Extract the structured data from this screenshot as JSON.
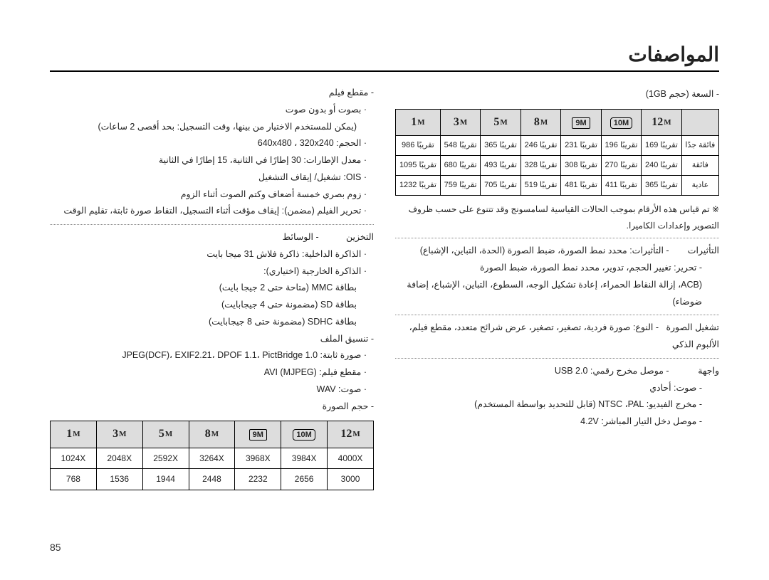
{
  "page": {
    "title": "المواصفات",
    "number": "85"
  },
  "right_col": {
    "video_clip_label": "- مقطع فيلم",
    "video_clip_sub": "· بصوت أو بدون صوت",
    "video_clip_note": "(يمكن للمستخدم الاختيار من بينها، وقت التسجيل: بحد أقصى 2 ساعات)",
    "size_line": "· الحجم: 640x480 ، 320x240",
    "fps_line": "· معدل الإطارات: 30 إطارًا في الثانية، 15 إطارًا في الثانية",
    "ois_line": "· OIS: تشغيل/ إيقاف التشغيل",
    "zoom_line": "· زوم بصري خمسة أضعاف وكتم الصوت أثناء الزوم",
    "edit_line": "· تحرير الفيلم (مضمن): إيقاف مؤقت أثناء التسجيل، التقاط صورة ثابتة، تقليم الوقت",
    "storage_label": "التخزين",
    "media_label": "- الوسائط",
    "internal_mem": "· الذاكرة الداخلية: ذاكرة فلاش 31 ميجا بايت",
    "external_mem": "· الذاكرة الخارجية (اختياري):",
    "mmc": "بطاقة MMC (متاحة حتى 2 جيجا بايت)",
    "sd": "بطاقة SD (مضمونة حتى 4 جيجابايت)",
    "sdhc": "بطاقة SDHC (مضمونة حتى 8 جيجابايت)",
    "file_format_label": "- تنسيق الملف",
    "still_format": "· صورة ثابتة: JPEG(DCF)، EXIF2.21، DPOF 1.1، PictBridge 1.0",
    "movie_format": "· مقطع فيلم: AVI (MJPEG)",
    "sound_format": "· صوت: WAV",
    "image_size_label": "- حجم الصورة"
  },
  "size_table": {
    "headers": [
      "12",
      "10",
      "9",
      "8",
      "5",
      "3",
      "1"
    ],
    "header_styles": [
      "plain",
      "wide",
      "frame",
      "plain",
      "plain",
      "plain",
      "plain"
    ],
    "row1": [
      "4000X",
      "3984X",
      "3968X",
      "3264X",
      "2592X",
      "2048X",
      "1024X"
    ],
    "row2": [
      "3000",
      "2656",
      "2232",
      "2448",
      "1944",
      "1536",
      "768"
    ]
  },
  "left_col": {
    "capacity_caption": "- السعة (حجم 1GB)",
    "capacity_rowlabels": [
      "فائقة جدًا",
      "فائقة",
      "عادية"
    ],
    "capacity_data": [
      [
        "تقريبًا 169",
        "تقريبًا 196",
        "تقريبًا 231",
        "تقريبًا 246",
        "تقريبًا 365",
        "تقريبًا 548",
        "تقريبًا 986"
      ],
      [
        "تقريبًا 240",
        "تقريبًا 270",
        "تقريبًا 308",
        "تقريبًا 328",
        "تقريبًا 493",
        "تقريبًا 680",
        "تقريبًا 1095"
      ],
      [
        "تقريبًا 365",
        "تقريبًا 411",
        "تقريبًا 481",
        "تقريبًا 519",
        "تقريبًا 705",
        "تقريبًا 759",
        "تقريبًا 1232"
      ]
    ],
    "note": "※ تم قياس هذه الأرقام بموجب الحالات القياسية لسامسونج وقد تتنوع على حسب ظروف التصوير وإعدادات الكاميرا.",
    "effects_label": "التأثيرات",
    "effects_line": "- التأثيرات: محدد نمط الصورة، ضبط الصورة (الحدة، التباين، الإشباع)",
    "edit_line2": "- تحرير: تغيير الحجم، تدوير، محدد نمط الصورة، ضبط الصورة",
    "acb_line": "(ACB، إزالة النقاط الحمراء، إعادة تشكيل الوجه، السطوع، التباين، الإشباع، إضافة ضوضاء)",
    "playback_label": "تشغيل الصورة",
    "playback_line": "- النوع: صورة فردية، تصغير، تصغير، عرض شرائح متعدد، مقطع فيلم، الألبوم الذكي",
    "interface_label": "واجهة",
    "usb_line": "- موصل مخرج رقمي: USB 2.0",
    "audio_line": "- صوت: أحادي",
    "video_out_line": "- مخرج الفيديو: NTSC ،PAL (قابل للتحديد بواسطة المستخدم)",
    "dc_line": "- موصل دخل التيار المباشر: 4.2V"
  }
}
